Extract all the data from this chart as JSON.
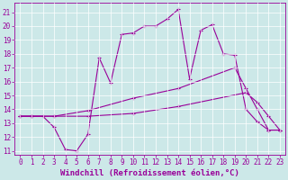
{
  "xlabel": "Windchill (Refroidissement éolien,°C)",
  "bg_color": "#cce8e8",
  "line_color": "#990099",
  "xlim": [
    -0.5,
    23.5
  ],
  "ylim": [
    10.7,
    21.7
  ],
  "xticks": [
    0,
    1,
    2,
    3,
    4,
    5,
    6,
    7,
    8,
    9,
    10,
    11,
    12,
    13,
    14,
    15,
    16,
    17,
    18,
    19,
    20,
    21,
    22,
    23
  ],
  "yticks": [
    11,
    12,
    13,
    14,
    15,
    16,
    17,
    18,
    19,
    20,
    21
  ],
  "line1_x": [
    0,
    1,
    2,
    3,
    4,
    5,
    6,
    7,
    8,
    9,
    10,
    11,
    12,
    13,
    14,
    15,
    16,
    17,
    18,
    19,
    20,
    21,
    22,
    23
  ],
  "line1_y": [
    13.5,
    13.5,
    13.5,
    12.7,
    11.1,
    11.0,
    12.2,
    17.7,
    15.9,
    19.4,
    19.5,
    20.0,
    20.0,
    20.5,
    21.2,
    16.2,
    19.7,
    20.1,
    18.0,
    17.9,
    14.0,
    13.1,
    12.5,
    12.5
  ],
  "line2_x": [
    0,
    1,
    3,
    6,
    10,
    14,
    19,
    20,
    21,
    22,
    23
  ],
  "line2_y": [
    13.5,
    13.5,
    13.5,
    13.9,
    14.8,
    15.5,
    17.0,
    15.5,
    14.0,
    12.5,
    12.5
  ],
  "line3_x": [
    0,
    1,
    3,
    6,
    10,
    14,
    20,
    21,
    22,
    23
  ],
  "line3_y": [
    13.5,
    13.5,
    13.5,
    13.5,
    13.7,
    14.2,
    15.2,
    14.5,
    13.5,
    12.5
  ],
  "tick_fontsize": 5.5,
  "label_fontsize": 6.5,
  "marker": "+",
  "markersize": 3,
  "markeredgewidth": 0.8,
  "linewidth": 0.8
}
